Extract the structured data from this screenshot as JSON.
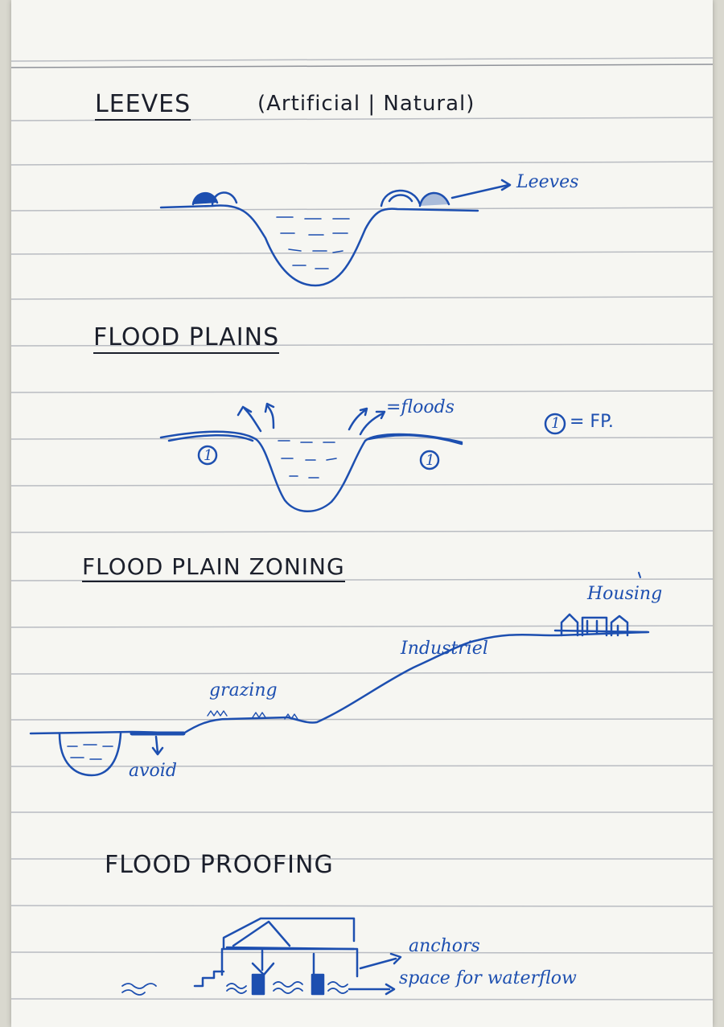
{
  "sections": [
    {
      "id": "leeves",
      "title": "LEEVES",
      "subtitle": "(Artificial | Natural)",
      "labels": {
        "arrow": "Leeves"
      }
    },
    {
      "id": "flood_plains",
      "title": "FLOOD PLAINS",
      "labels": {
        "floods": "=floods",
        "marker_left": "1",
        "marker_right": "1",
        "legend_marker": "1",
        "legend_value": "= FP."
      }
    },
    {
      "id": "flood_plain_zoning",
      "title": "FLOOD PLAIN ZONING",
      "labels": {
        "housing": "Housing",
        "industrial": "Industriel",
        "grazing": "grazing",
        "avoid": "avoid"
      }
    },
    {
      "id": "flood_proofing",
      "title": "FLOOD PROOFING",
      "labels": {
        "anchors": "anchors",
        "space": "space for waterflow"
      }
    }
  ],
  "colors": {
    "pencil": "#1b1f2b",
    "ink": "#1d4fb0",
    "rule": "#b9bcc2",
    "paper": "#f6f6f2"
  }
}
